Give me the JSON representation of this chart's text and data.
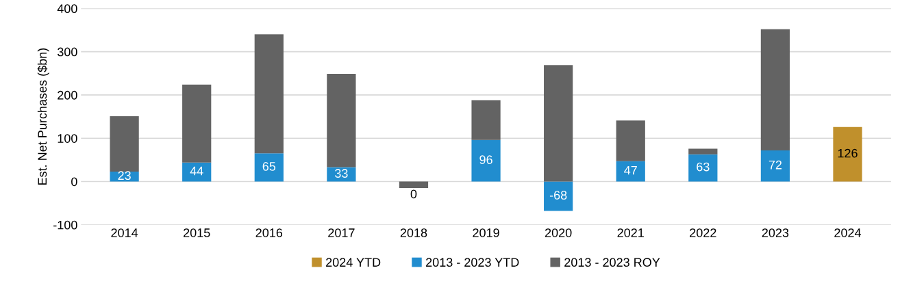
{
  "chart_data": {
    "type": "bar",
    "stacked": true,
    "ylabel": "Est. Net Purchases ($bn)",
    "categories": [
      "2014",
      "2015",
      "2016",
      "2017",
      "2018",
      "2019",
      "2020",
      "2021",
      "2022",
      "2023",
      "2024"
    ],
    "series": [
      {
        "name": "2024 YTD",
        "color": "#c0902c",
        "values": [
          null,
          null,
          null,
          null,
          null,
          null,
          null,
          null,
          null,
          null,
          126
        ],
        "value_labels": [
          null,
          null,
          null,
          null,
          null,
          null,
          null,
          null,
          null,
          null,
          "126"
        ]
      },
      {
        "name": "2013 - 2023 YTD",
        "color": "#218dcf",
        "values": [
          23,
          44,
          65,
          33,
          0,
          96,
          -68,
          47,
          63,
          72,
          null
        ],
        "value_labels": [
          "23",
          "44",
          "65",
          "33",
          "0",
          "96",
          "-68",
          "47",
          "63",
          "72",
          null
        ]
      },
      {
        "name": "2013 - 2023 ROY",
        "color": "#636363",
        "values": [
          128,
          180,
          275,
          216,
          -15,
          92,
          269,
          94,
          13,
          280,
          null
        ]
      }
    ],
    "ylim": [
      -100,
      400
    ],
    "yticks": [
      -100,
      0,
      100,
      200,
      300,
      400
    ],
    "grid": "y",
    "legend": "bottom"
  }
}
